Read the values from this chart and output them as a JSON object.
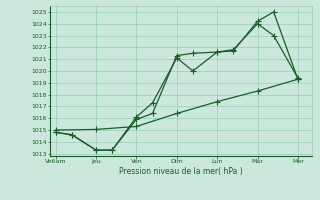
{
  "bg_color": "#cce8dc",
  "grid_color": "#99ccb8",
  "line_color": "#1a5c2a",
  "xlabel": "Pression niveau de la mer( hPa )",
  "xtick_labels": [
    "Ve6am",
    "Jeu",
    "Ven",
    "Dim",
    "Lun",
    "Mar",
    "Mer"
  ],
  "xtick_positions": [
    0,
    1,
    2,
    3,
    4,
    5,
    6
  ],
  "ylim": [
    1012.8,
    1025.5
  ],
  "xlim": [
    -0.15,
    6.35
  ],
  "yticks": [
    1013,
    1014,
    1015,
    1016,
    1017,
    1018,
    1019,
    1020,
    1021,
    1022,
    1023,
    1024,
    1025
  ],
  "line1_x": [
    0,
    0.4,
    1.0,
    1.4,
    2.0,
    2.4,
    3.0,
    3.4,
    4.0,
    4.4,
    5.0,
    5.4,
    6.0
  ],
  "line1_y": [
    1014.8,
    1014.6,
    1013.3,
    1013.3,
    1016.1,
    1017.3,
    1021.1,
    1020.0,
    1021.6,
    1021.7,
    1024.2,
    1025.0,
    1019.3
  ],
  "line2_x": [
    0,
    0.4,
    1.0,
    1.4,
    2.0,
    2.4,
    3.0,
    3.4,
    4.0,
    4.4,
    5.0,
    5.4,
    6.0
  ],
  "line2_y": [
    1014.8,
    1014.6,
    1013.3,
    1013.3,
    1015.9,
    1016.4,
    1021.3,
    1021.5,
    1021.6,
    1021.8,
    1024.0,
    1023.0,
    1019.4
  ],
  "line3_x": [
    0,
    1.0,
    2.0,
    3.0,
    4.0,
    5.0,
    6.0
  ],
  "line3_y": [
    1015.0,
    1015.05,
    1015.3,
    1016.4,
    1017.4,
    1018.3,
    1019.3
  ],
  "markersize": 2.8,
  "linewidth": 0.9
}
